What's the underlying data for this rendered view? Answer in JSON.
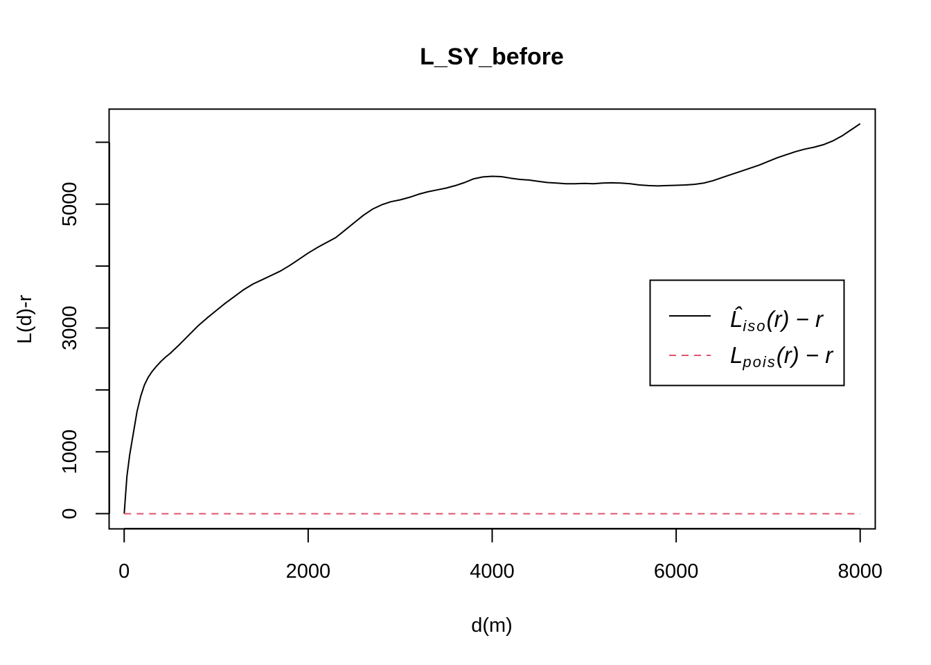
{
  "chart_data": {
    "type": "line",
    "title": "L_SY_before",
    "xlabel": "d(m)",
    "ylabel": "L(d)-r",
    "xlim": [
      -160,
      8160
    ],
    "ylim": [
      -240,
      6530
    ],
    "xticks": [
      0,
      2000,
      4000,
      6000,
      8000
    ],
    "yticks": [
      0,
      1000,
      2000,
      3000,
      4000,
      5000,
      6000
    ],
    "ytick_labels": [
      "0",
      "1000",
      "",
      "3000",
      "",
      "5000",
      ""
    ],
    "grid": false,
    "legend_position": "right",
    "series": [
      {
        "name": "L̂iso(r) − r",
        "legend_main": "L̂",
        "legend_sub": "iso",
        "legend_tail": "(r) − r",
        "color": "#000000",
        "style": "solid",
        "x": [
          0,
          30,
          60,
          100,
          140,
          180,
          220,
          260,
          300,
          350,
          400,
          450,
          500,
          600,
          700,
          800,
          900,
          1000,
          1100,
          1200,
          1300,
          1400,
          1500,
          1600,
          1700,
          1800,
          1900,
          2000,
          2100,
          2200,
          2300,
          2400,
          2500,
          2600,
          2700,
          2800,
          2900,
          3000,
          3100,
          3200,
          3300,
          3400,
          3500,
          3600,
          3700,
          3800,
          3900,
          4000,
          4100,
          4200,
          4300,
          4400,
          4500,
          4600,
          4700,
          4800,
          4900,
          5000,
          5100,
          5200,
          5300,
          5400,
          5500,
          5600,
          5700,
          5800,
          5900,
          6000,
          6100,
          6200,
          6300,
          6400,
          6500,
          6600,
          6700,
          6800,
          6900,
          7000,
          7100,
          7200,
          7300,
          7400,
          7500,
          7600,
          7700,
          7800,
          7900,
          8000
        ],
        "y": [
          0,
          600,
          950,
          1300,
          1650,
          1900,
          2080,
          2200,
          2290,
          2380,
          2460,
          2530,
          2590,
          2730,
          2880,
          3030,
          3160,
          3280,
          3400,
          3510,
          3620,
          3710,
          3780,
          3850,
          3920,
          4010,
          4110,
          4210,
          4300,
          4380,
          4460,
          4580,
          4700,
          4820,
          4920,
          4990,
          5040,
          5070,
          5110,
          5160,
          5200,
          5230,
          5260,
          5300,
          5350,
          5410,
          5440,
          5450,
          5445,
          5420,
          5400,
          5390,
          5370,
          5350,
          5340,
          5330,
          5330,
          5335,
          5330,
          5340,
          5345,
          5340,
          5330,
          5310,
          5300,
          5295,
          5300,
          5305,
          5310,
          5320,
          5340,
          5380,
          5430,
          5480,
          5530,
          5580,
          5630,
          5690,
          5750,
          5800,
          5850,
          5890,
          5920,
          5960,
          6020,
          6100,
          6200,
          6300
        ]
      },
      {
        "name": "Lpois(r) − r",
        "legend_main": "L",
        "legend_sub": "pois",
        "legend_tail": "(r) − r",
        "color": "#DF536B",
        "style": "dashed",
        "x": [
          0,
          8000
        ],
        "y": [
          0,
          0
        ]
      }
    ]
  }
}
